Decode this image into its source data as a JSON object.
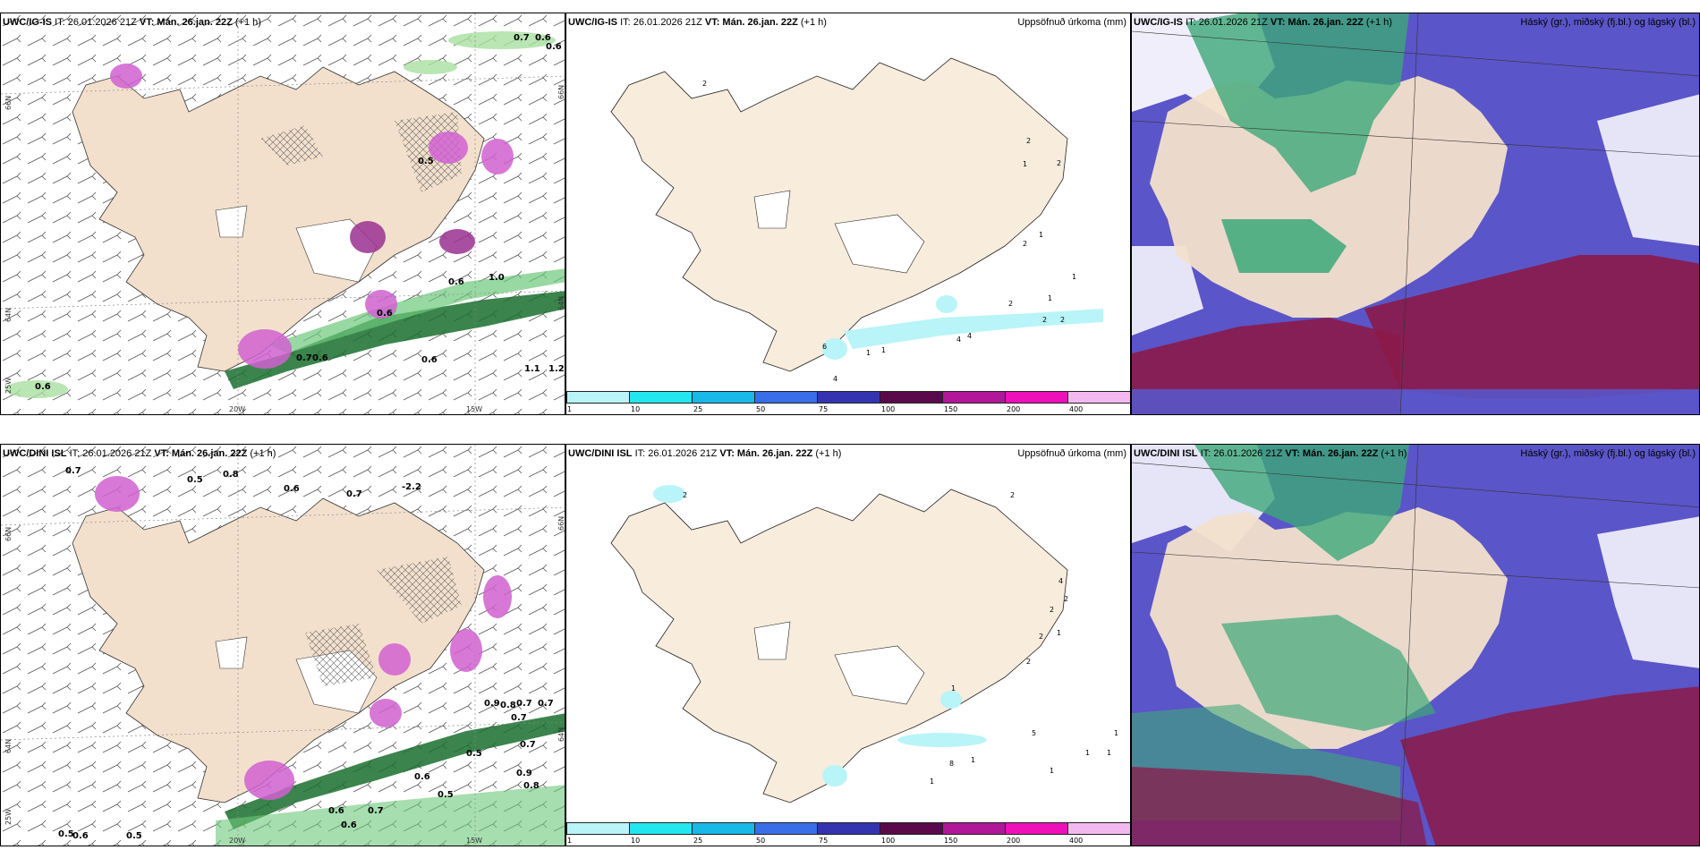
{
  "colors": {
    "land": "#f3e0cc",
    "water": "#ffffff",
    "green": "#1a6e2e",
    "magenta": "#d060d0",
    "cloud_high": "#3ca878",
    "cloud_mid": "#5a55c8",
    "cloud_low": "#8b1a48"
  },
  "panels": {
    "top_wind": {
      "model": "UWC/IG-IS",
      "it": "IT: 26.01.2026 21Z",
      "vt_label": "VT:",
      "vt": "Mán. 26.jan. 22Z",
      "lead": "(+1 h)",
      "lat_labels": [
        "66N",
        "64N"
      ],
      "lon_labels": [
        "20W",
        "15W"
      ],
      "edge_labels": [
        "25W",
        "66N",
        "64N"
      ],
      "values": [
        "0.7",
        "0.6",
        "0.6",
        "0.5",
        "1.0",
        "0.6",
        "0.7",
        "0.6",
        "0.6",
        "1.1",
        "0.6",
        "0.6",
        "1.2"
      ]
    },
    "top_precip": {
      "model": "UWC/IG-IS",
      "it": "IT: 26.01.2026 21Z",
      "vt_label": "VT:",
      "vt": "Mán. 26.jan. 22Z",
      "lead": "(+1 h)",
      "right_label": "Uppsöfnuð úrkoma (mm)",
      "values": [
        "2",
        "2",
        "1",
        "2",
        "1",
        "2",
        "1",
        "2",
        "1",
        "2",
        "2",
        "4",
        "4",
        "1",
        "1",
        "4",
        "6"
      ]
    },
    "top_cloud": {
      "model": "UWC/IG-IS",
      "it": "IT: 26.01.2026 21Z",
      "vt_label": "VT:",
      "vt": "Mán. 26.jan. 22Z",
      "lead": "(+1 h)",
      "right_label": "Háský (gr.), miðský (fj.bl.) og lágský (bl.)"
    },
    "bottom_wind": {
      "model": "UWC/DINI ISL",
      "it": "IT: 26.01.2026 21Z",
      "vt_label": "VT:",
      "vt": "Mán. 26.jan. 22Z",
      "lead": "(+1 h)",
      "lat_labels": [
        "66N",
        "64N"
      ],
      "lon_labels": [
        "20W",
        "15W"
      ],
      "edge_labels": [
        "25W",
        "66N",
        "64N"
      ],
      "values": [
        "0.7",
        "0.5",
        "0.8",
        "0.6",
        "0.7",
        "-2.2",
        "0.9",
        "0.8",
        "0.7",
        "0.7",
        "0.7",
        "0.5",
        "0.7",
        "0.9",
        "0.8",
        "0.6",
        "0.5",
        "0.6",
        "0.7",
        "0.5",
        "0.6",
        "0.5",
        "0.6"
      ]
    },
    "bottom_precip": {
      "model": "UWC/DINI ISL",
      "it": "IT: 26.01.2026 21Z",
      "vt_label": "VT:",
      "vt": "Mán. 26.jan. 22Z",
      "lead": "(+1 h)",
      "right_label": "Uppsöfnuð úrkoma (mm)",
      "values": [
        "2",
        "2",
        "4",
        "2",
        "2",
        "2",
        "1",
        "2",
        "1",
        "5",
        "8",
        "1",
        "1",
        "1",
        "1",
        "1",
        "1"
      ]
    },
    "bottom_cloud": {
      "model": "UWC/DINI ISL",
      "it": "IT: 26.01.2026 21Z",
      "vt_label": "VT:",
      "vt": "Mán. 26.jan. 22Z",
      "lead": "(+1 h)",
      "right_label": "Háský (gr.), miðský (fj.bl.) og lágský (bl.)"
    }
  },
  "colorbar": {
    "ticks": [
      "1",
      "10",
      "25",
      "50",
      "75",
      "100",
      "150",
      "200",
      "400"
    ],
    "colors": [
      "#b8f4f8",
      "#22e6ee",
      "#18b8e8",
      "#3a6ee8",
      "#3434b0",
      "#5a0a4a",
      "#b01898",
      "#ee10b8",
      "#f4b8f0"
    ]
  }
}
